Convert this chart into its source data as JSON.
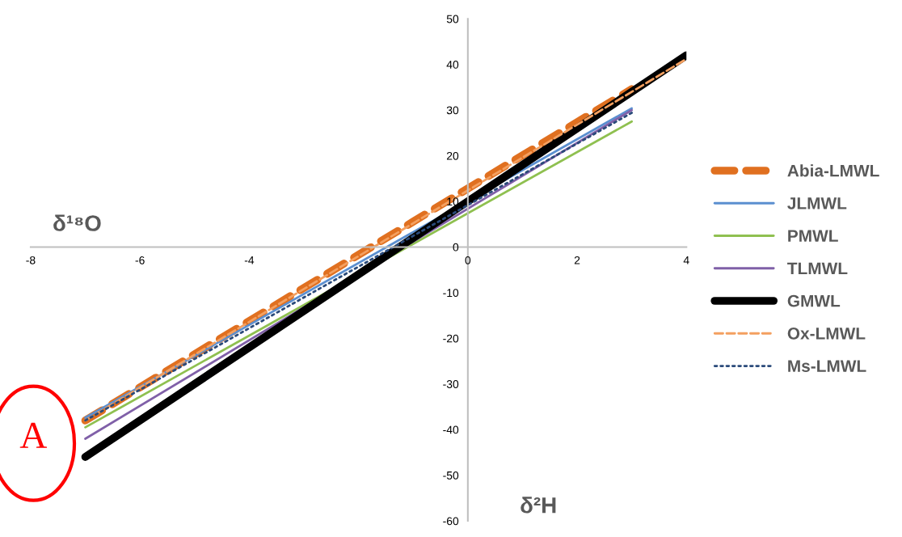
{
  "chart_data": {
    "type": "line",
    "xlabel": "δ¹⁸O",
    "ylabel": "δ²H",
    "xlim": [
      -8,
      4
    ],
    "ylim": [
      -60,
      50
    ],
    "xticks": [
      -8,
      -6,
      -4,
      0,
      2,
      4
    ],
    "yticks": [
      -60,
      -50,
      -40,
      -30,
      -20,
      -10,
      0,
      10,
      20,
      30,
      40,
      50
    ],
    "grid": false,
    "legend": "right",
    "marker": "none",
    "annotations": [
      "A"
    ],
    "series": [
      {
        "name": "Abia-LMWL",
        "color": "#e07020",
        "x": [
          -7,
          3
        ],
        "values": [
          -38,
          34.6
        ],
        "line_style": "dashed"
      },
      {
        "name": "JLMWL",
        "color": "#5b8fd0",
        "x": [
          -7,
          3
        ],
        "values": [
          -37.4,
          30.4
        ],
        "line_style": "solid"
      },
      {
        "name": "PMWL",
        "color": "#8fc050",
        "x": [
          -7,
          3
        ],
        "values": [
          -39.5,
          27.5
        ],
        "line_style": "solid"
      },
      {
        "name": "TLMWL",
        "color": "#8060a8",
        "x": [
          -7,
          3
        ],
        "values": [
          -42,
          30
        ],
        "line_style": "solid"
      },
      {
        "name": "GMWL",
        "color": "#000000",
        "x": [
          -7,
          4
        ],
        "values": [
          -46,
          42
        ],
        "line_style": "solid"
      },
      {
        "name": "Ox-LMWL",
        "color": "#f4a060",
        "x": [
          -7,
          4
        ],
        "values": [
          -38,
          41.2
        ],
        "line_style": "dashed"
      },
      {
        "name": "Ms-LMWL",
        "color": "#2a4a7a",
        "x": [
          -7,
          3
        ],
        "values": [
          -38,
          29.4
        ],
        "line_style": "dotted"
      }
    ]
  }
}
